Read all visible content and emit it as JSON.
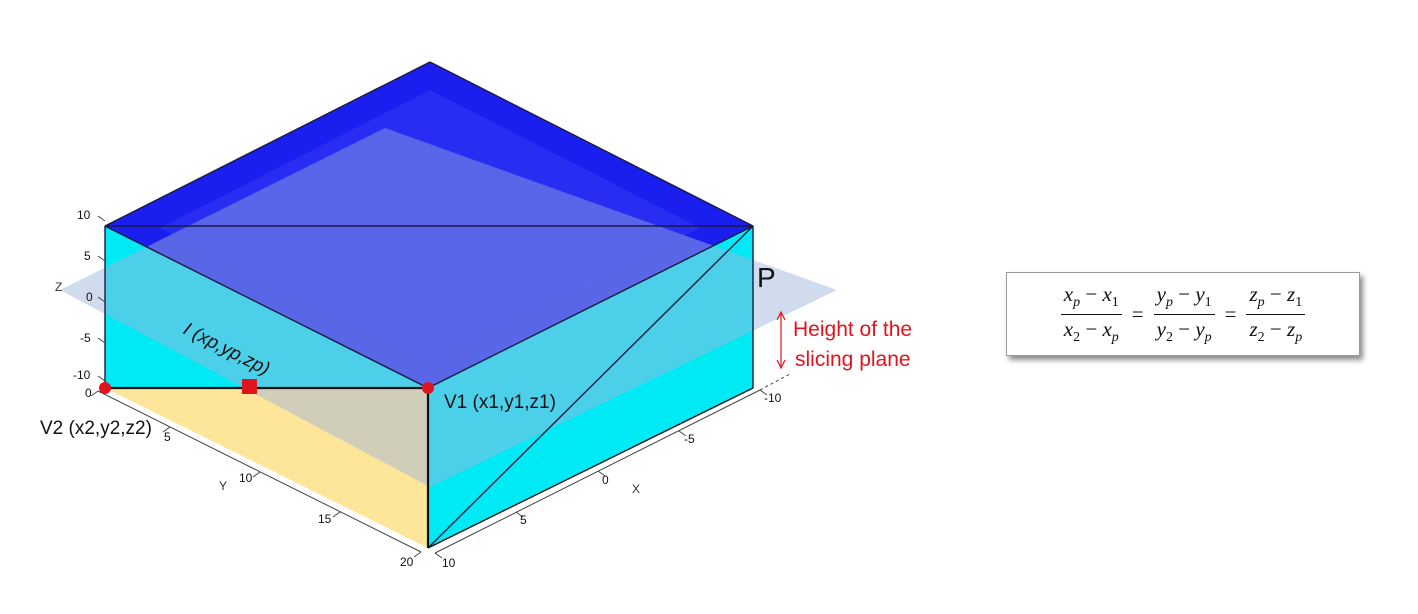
{
  "axes": {
    "z_name": "Z",
    "z_ticks": [
      "10",
      "5",
      "0",
      "-5",
      "-10"
    ],
    "y_name": "Y",
    "y_ticks": [
      "0",
      "5",
      "10",
      "15",
      "20"
    ],
    "x_name": "X",
    "x_ticks": [
      "-10",
      "-5",
      "0",
      "5",
      "10"
    ]
  },
  "labels": {
    "plane": "P",
    "point_i": "I (xp,yp,zp)",
    "point_v1": "V1 (x1,y1,z1)",
    "point_v2": "V2 (x2,y2,z2)",
    "height_line1": "Height of the",
    "height_line2": "slicing plane"
  },
  "formula": {
    "f1_num": [
      "x",
      "p",
      "−",
      "x",
      "1"
    ],
    "f1_den": [
      "x",
      "2",
      "−",
      "x",
      "p"
    ],
    "f2_num": [
      "y",
      "p",
      "−",
      "y",
      "1"
    ],
    "f2_den": [
      "y",
      "2",
      "−",
      "y",
      "p"
    ],
    "f3_num": [
      "z",
      "p",
      "−",
      "z",
      "1"
    ],
    "f3_den": [
      "z",
      "2",
      "−",
      "z",
      "p"
    ],
    "equals": "="
  },
  "colors": {
    "top_face": "#1a1ff0",
    "side_faces": "#00eaf5",
    "bottom_face": "#fde59a",
    "slicing_plane": "#a9bce0",
    "points": "#e0141e"
  }
}
